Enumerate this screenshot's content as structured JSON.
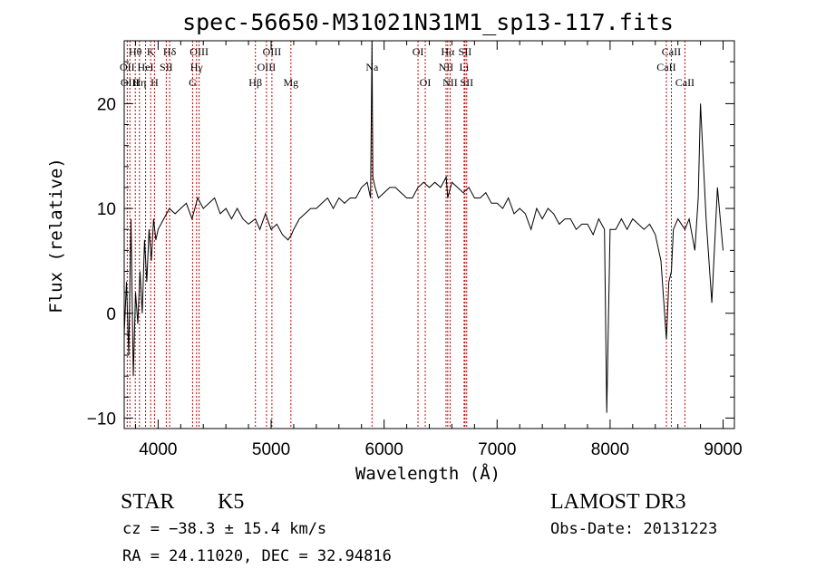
{
  "chart_data": {
    "type": "line",
    "title": "spec-56650-M31021N31M1_sp13-117.fits",
    "xlabel": "Wavelength (Å)",
    "ylabel": "Flux (relative)",
    "xlim": [
      3700,
      9100
    ],
    "ylim": [
      -11,
      26
    ],
    "x_ticks": [
      4000,
      5000,
      6000,
      7000,
      8000,
      9000
    ],
    "y_ticks": [
      -10,
      0,
      10,
      20
    ],
    "grid": false,
    "line_color": "#000000",
    "marker_color": "#cc0000",
    "spectrum": {
      "x": [
        3700,
        3720,
        3740,
        3760,
        3780,
        3800,
        3820,
        3840,
        3860,
        3880,
        3900,
        3920,
        3940,
        3960,
        3980,
        4000,
        4050,
        4100,
        4150,
        4200,
        4250,
        4300,
        4350,
        4400,
        4450,
        4500,
        4550,
        4600,
        4650,
        4700,
        4750,
        4800,
        4860,
        4900,
        4950,
        5000,
        5050,
        5100,
        5150,
        5180,
        5200,
        5250,
        5300,
        5350,
        5400,
        5450,
        5500,
        5550,
        5600,
        5650,
        5700,
        5750,
        5800,
        5850,
        5880,
        5893,
        5900,
        5920,
        5950,
        6000,
        6050,
        6100,
        6150,
        6200,
        6250,
        6300,
        6350,
        6400,
        6450,
        6500,
        6550,
        6563,
        6600,
        6650,
        6700,
        6750,
        6800,
        6850,
        6900,
        6950,
        7000,
        7050,
        7100,
        7150,
        7200,
        7250,
        7300,
        7350,
        7400,
        7450,
        7500,
        7550,
        7600,
        7650,
        7700,
        7750,
        7800,
        7850,
        7900,
        7950,
        7970,
        8000,
        8050,
        8100,
        8150,
        8200,
        8250,
        8300,
        8350,
        8400,
        8450,
        8498,
        8520,
        8542,
        8560,
        8600,
        8662,
        8700,
        8750,
        8780,
        8800,
        8850,
        8900,
        8950,
        9000
      ],
      "y": [
        -2,
        3,
        -4,
        9,
        -6,
        2,
        -1,
        4,
        0,
        7,
        3,
        8,
        5,
        9,
        7,
        8,
        9,
        10,
        9.5,
        10,
        10.5,
        9,
        11,
        10,
        10.5,
        11,
        9.5,
        10,
        9,
        10,
        9,
        8.5,
        9,
        8,
        9.5,
        8,
        8.5,
        7.5,
        7,
        7.5,
        8,
        9,
        9.5,
        10,
        10,
        10.5,
        11,
        10,
        11,
        10.5,
        11,
        11,
        12,
        12.5,
        11,
        26,
        13,
        12,
        11,
        11.5,
        12,
        12,
        11.5,
        11,
        11,
        12,
        12.5,
        12,
        12.5,
        12,
        13,
        11,
        12.5,
        12,
        11.5,
        12,
        11,
        11,
        11.5,
        10.5,
        10.5,
        10,
        11,
        9.5,
        10,
        9.5,
        8,
        10,
        9,
        10,
        9.5,
        8.5,
        9,
        9,
        8,
        8.5,
        8.5,
        7.5,
        9,
        8,
        -9.5,
        8,
        8,
        9,
        8,
        9,
        8.5,
        8,
        8.5,
        7.5,
        5,
        -2.5,
        3,
        4,
        8,
        9,
        8,
        9,
        6,
        11,
        20,
        9,
        1,
        12,
        6
      ]
    },
    "lines": [
      {
        "label": "Hθ",
        "x": 3798,
        "row": 1
      },
      {
        "label": "OII",
        "x": 3727,
        "row": 2
      },
      {
        "label": "OIII",
        "x": 3750,
        "row": 3
      },
      {
        "label": "K",
        "x": 3934,
        "row": 1
      },
      {
        "label": "HeI",
        "x": 3889,
        "row": 2
      },
      {
        "label": "Hη",
        "x": 3835,
        "row": 3
      },
      {
        "label": "SII",
        "x": 4072,
        "row": 2
      },
      {
        "label": "H",
        "x": 3968,
        "row": 3
      },
      {
        "label": "Hδ",
        "x": 4102,
        "row": 1
      },
      {
        "label": "OIII",
        "x": 4363,
        "row": 1
      },
      {
        "label": "Hγ",
        "x": 4340,
        "row": 2
      },
      {
        "label": "G",
        "x": 4305,
        "row": 3
      },
      {
        "label": "Hβ",
        "x": 4861,
        "row": 3
      },
      {
        "label": "OIII",
        "x": 5007,
        "row": 1
      },
      {
        "label": "OIII",
        "x": 4959,
        "row": 2
      },
      {
        "label": "Mg",
        "x": 5175,
        "row": 3
      },
      {
        "label": "Na",
        "x": 5893,
        "row": 2
      },
      {
        "label": "OI",
        "x": 6300,
        "row": 1
      },
      {
        "label": "OI",
        "x": 6364,
        "row": 3
      },
      {
        "label": "Hα",
        "x": 6563,
        "row": 1
      },
      {
        "label": "SII",
        "x": 6716,
        "row": 1
      },
      {
        "label": "NII",
        "x": 6548,
        "row": 2
      },
      {
        "label": "Li",
        "x": 6708,
        "row": 2
      },
      {
        "label": "NII",
        "x": 6584,
        "row": 3
      },
      {
        "label": "SII",
        "x": 6731,
        "row": 3
      },
      {
        "label": "CaII",
        "x": 8542,
        "row": 1
      },
      {
        "label": "CaII",
        "x": 8498,
        "row": 2
      },
      {
        "label": "CaII",
        "x": 8662,
        "row": 3
      }
    ]
  },
  "info": {
    "object_class": "STAR",
    "subclass": "K5",
    "survey": "LAMOST DR3",
    "cz": "cz = −38.3 ± 15.4 km/s",
    "obs_date": "Obs-Date: 20131223",
    "radec": "RA =  24.11020, DEC =  32.94816"
  }
}
